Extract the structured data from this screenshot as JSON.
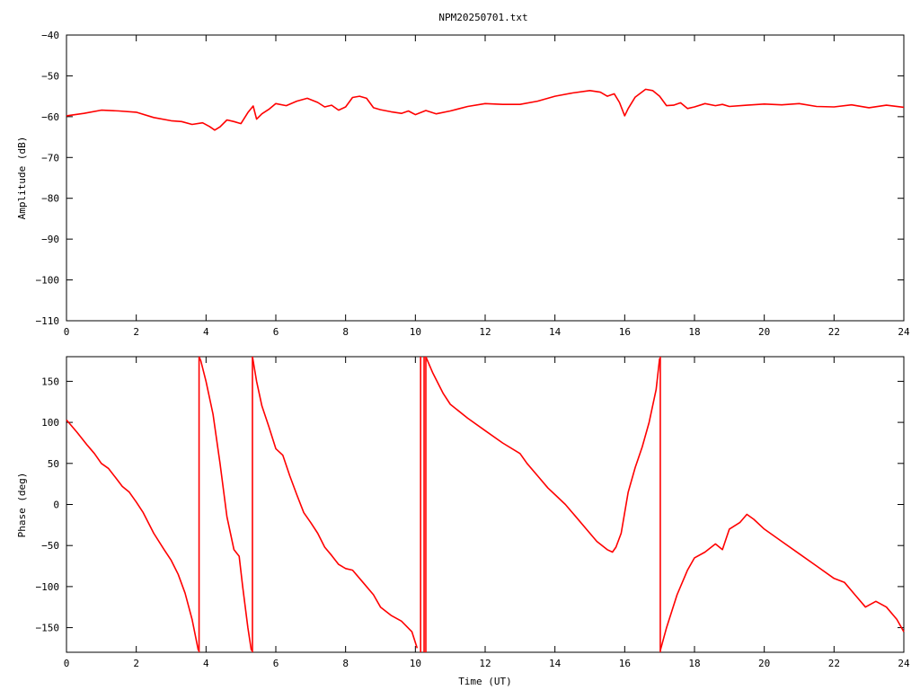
{
  "title": "NPM20250701.txt",
  "trace_color": "#ff0000",
  "chart_data": [
    {
      "type": "line",
      "name": "amplitude",
      "title": "NPM20250701.txt",
      "xlabel": "",
      "ylabel": "Amplitude (dB)",
      "xlim": [
        0,
        24
      ],
      "ylim": [
        -110,
        -40
      ],
      "xticks": [
        0,
        2,
        4,
        6,
        8,
        10,
        12,
        14,
        16,
        18,
        20,
        22,
        24
      ],
      "yticks": [
        -110,
        -100,
        -90,
        -80,
        -70,
        -60,
        -50,
        -40
      ],
      "grid": false,
      "series": [
        {
          "x": [
            0,
            0.5,
            1,
            1.5,
            2,
            2.5,
            3,
            3.3,
            3.6,
            3.9,
            4.1,
            4.25,
            4.4,
            4.6,
            4.8,
            5.0,
            5.2,
            5.35,
            5.45,
            5.6,
            5.8,
            6.0,
            6.3,
            6.6,
            6.9,
            7.2,
            7.4,
            7.6,
            7.8,
            8.0,
            8.2,
            8.4,
            8.6,
            8.8,
            9.0,
            9.3,
            9.6,
            9.8,
            10.0,
            10.3,
            10.6,
            11.0,
            11.5,
            12.0,
            12.5,
            13.0,
            13.5,
            14.0,
            14.5,
            15.0,
            15.3,
            15.5,
            15.7,
            15.85,
            16.0,
            16.1,
            16.3,
            16.6,
            16.8,
            17.0,
            17.2,
            17.4,
            17.6,
            17.8,
            18.0,
            18.3,
            18.6,
            18.8,
            19.0,
            19.5,
            20.0,
            20.5,
            21.0,
            21.5,
            22.0,
            22.5,
            23.0,
            23.5,
            24.0
          ],
          "values": [
            -59.8,
            -59.2,
            -58.4,
            -58.6,
            -58.9,
            -60.2,
            -61.0,
            -61.2,
            -61.9,
            -61.5,
            -62.4,
            -63.3,
            -62.5,
            -60.8,
            -61.2,
            -61.7,
            -59.0,
            -57.4,
            -60.6,
            -59.3,
            -58.2,
            -56.8,
            -57.3,
            -56.2,
            -55.5,
            -56.5,
            -57.6,
            -57.2,
            -58.4,
            -57.6,
            -55.3,
            -55.0,
            -55.5,
            -57.8,
            -58.3,
            -58.8,
            -59.2,
            -58.6,
            -59.5,
            -58.5,
            -59.3,
            -58.6,
            -57.5,
            -56.8,
            -57.0,
            -57.0,
            -56.2,
            -55.0,
            -54.2,
            -53.6,
            -54.0,
            -55.0,
            -54.4,
            -56.5,
            -59.8,
            -58.0,
            -55.2,
            -53.3,
            -53.6,
            -55.0,
            -57.3,
            -57.2,
            -56.6,
            -58.0,
            -57.6,
            -56.8,
            -57.3,
            -57.0,
            -57.5,
            -57.2,
            -56.9,
            -57.1,
            -56.8,
            -57.5,
            -57.6,
            -57.1,
            -57.8,
            -57.2,
            -57.7
          ]
        }
      ]
    },
    {
      "type": "line",
      "name": "phase",
      "title": "",
      "xlabel": "Time (UT)",
      "ylabel": "Phase (deg)",
      "xlim": [
        0,
        24
      ],
      "ylim": [
        -180,
        180
      ],
      "xticks": [
        0,
        2,
        4,
        6,
        8,
        10,
        12,
        14,
        16,
        18,
        20,
        22,
        24
      ],
      "yticks": [
        -150,
        -100,
        -50,
        0,
        50,
        100,
        150
      ],
      "grid": false,
      "series": [
        {
          "x": [
            0,
            0.3,
            0.6,
            0.8,
            1.0,
            1.2,
            1.4,
            1.6,
            1.8,
            2.0,
            2.2,
            2.5,
            2.8,
            3.0,
            3.2,
            3.4,
            3.6,
            3.78,
            3.8,
            3.85,
            4.0,
            4.2,
            4.4,
            4.6,
            4.8,
            4.95,
            5.05,
            5.2,
            5.3,
            5.33,
            5.45,
            5.6,
            5.8,
            6.0,
            6.2,
            6.4,
            6.6,
            6.8,
            7.0,
            7.2,
            7.4,
            7.6,
            7.8,
            8.0,
            8.2,
            8.5,
            8.8,
            9.0,
            9.3,
            9.6,
            9.9,
            10.05,
            10.15,
            10.25,
            10.3,
            10.35,
            10.5,
            10.8,
            11.0,
            11.5,
            12.0,
            12.5,
            13.0,
            13.2,
            13.5,
            13.8,
            14.0,
            14.3,
            14.6,
            14.9,
            15.2,
            15.5,
            15.65,
            15.75,
            15.9,
            16.0,
            16.1,
            16.3,
            16.5,
            16.7,
            16.9,
            17.0,
            17.02,
            17.2,
            17.5,
            17.8,
            18.0,
            18.3,
            18.6,
            18.8,
            19.0,
            19.3,
            19.5,
            19.7,
            20.0,
            20.5,
            21.0,
            21.5,
            22.0,
            22.3,
            22.6,
            22.9,
            23.2,
            23.5,
            23.8,
            24.0
          ],
          "values": [
            103,
            88,
            72,
            62,
            50,
            44,
            33,
            22,
            15,
            3,
            -10,
            -35,
            -55,
            -68,
            -85,
            -108,
            -140,
            -178,
            180,
            175,
            150,
            110,
            50,
            -15,
            -55,
            -63,
            -100,
            -150,
            -178,
            180,
            150,
            120,
            95,
            68,
            60,
            35,
            12,
            -10,
            -22,
            -35,
            -52,
            -62,
            -73,
            -78,
            -80,
            -95,
            -110,
            -125,
            -135,
            -142,
            -155,
            -175,
            180,
            -178,
            180,
            175,
            160,
            135,
            122,
            105,
            90,
            75,
            62,
            50,
            35,
            20,
            12,
            0,
            -15,
            -30,
            -45,
            -55,
            -58,
            -52,
            -35,
            -10,
            15,
            45,
            70,
            100,
            140,
            178,
            -178,
            -150,
            -110,
            -80,
            -65,
            -58,
            -48,
            -55,
            -30,
            -22,
            -12,
            -18,
            -30,
            -45,
            -60,
            -75,
            -90,
            -95,
            -110,
            -125,
            -118,
            -125,
            -140,
            -155
          ]
        }
      ]
    }
  ]
}
